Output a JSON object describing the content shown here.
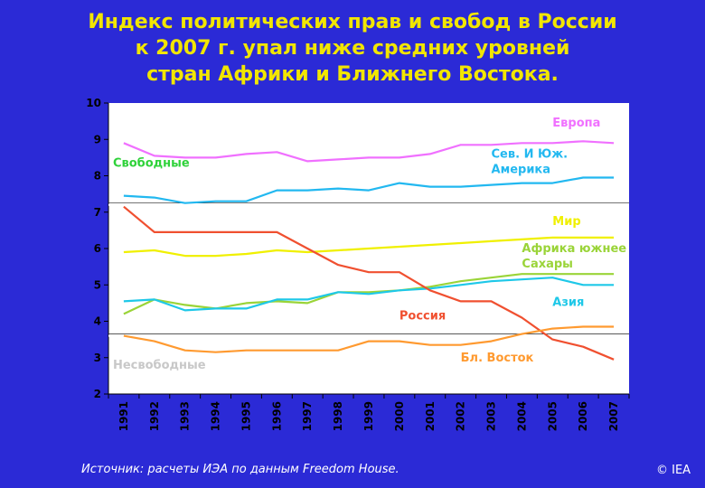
{
  "header": {
    "title_lines": [
      "Индекс политических прав и свобод в России",
      "к 2007 г. упал ниже средних уровней",
      "стран Африки и Ближнего Востока."
    ]
  },
  "footer": {
    "source": "Источник: расчеты ИЭА по данным Freedom House.",
    "copyright": "© IEA"
  },
  "chart_data": {
    "type": "line",
    "title": "",
    "xlabel": "",
    "ylabel": "",
    "ylim": [
      2,
      10
    ],
    "yticks": [
      2,
      3,
      4,
      5,
      6,
      7,
      8,
      9,
      10
    ],
    "x": [
      "1991",
      "1992",
      "1993",
      "1994",
      "1995",
      "1996",
      "1997",
      "1998",
      "1999",
      "2000",
      "2001",
      "2002",
      "2003",
      "2004",
      "2005",
      "2006",
      "2007"
    ],
    "grid": false,
    "background_color": "#ffffff",
    "reference_lines": [
      {
        "y": 7.2,
        "color": "#ffffff"
      },
      {
        "y": 3.6,
        "color": "#ffffff"
      }
    ],
    "zone_labels": [
      {
        "text": "Свободные",
        "color": "#2fd23a",
        "x": "1991",
        "y": 8.25
      },
      {
        "text": "Несвободные",
        "color": "#c8c8c8",
        "x": "1991",
        "y": 2.7
      }
    ],
    "series": [
      {
        "name": "Европа",
        "color": "#f070ff",
        "label_x": "2005",
        "label_y": 9.35,
        "values": [
          8.9,
          8.55,
          8.5,
          8.5,
          8.6,
          8.65,
          8.4,
          8.45,
          8.5,
          8.5,
          8.6,
          8.85,
          8.85,
          8.9,
          8.9,
          8.95,
          8.9
        ]
      },
      {
        "name": "Сев. И Юж. Америка",
        "label_lines": [
          "Сев. И Юж.",
          "Америка"
        ],
        "color": "#22b8f0",
        "label_x": "2003",
        "label_y": 8.5,
        "values": [
          7.45,
          7.4,
          7.25,
          7.3,
          7.3,
          7.6,
          7.6,
          7.65,
          7.6,
          7.8,
          7.7,
          7.7,
          7.75,
          7.8,
          7.8,
          7.95,
          7.95
        ]
      },
      {
        "name": "Мир",
        "color": "#f0f000",
        "label_x": "2005",
        "label_y": 6.65,
        "values": [
          5.9,
          5.95,
          5.8,
          5.8,
          5.85,
          5.95,
          5.9,
          5.95,
          6.0,
          6.05,
          6.1,
          6.15,
          6.2,
          6.25,
          6.3,
          6.3,
          6.3
        ]
      },
      {
        "name": "Африка южнее Сахары",
        "label_lines": [
          "Африка южнее",
          "Сахары"
        ],
        "color": "#9ad438",
        "label_x": "2004",
        "label_y": 5.9,
        "values": [
          4.2,
          4.6,
          4.45,
          4.35,
          4.5,
          4.55,
          4.5,
          4.8,
          4.8,
          4.85,
          4.95,
          5.1,
          5.2,
          5.3,
          5.3,
          5.3,
          5.3
        ]
      },
      {
        "name": "Азия",
        "color": "#1ec8e8",
        "label_x": "2005",
        "label_y": 4.42,
        "values": [
          4.55,
          4.6,
          4.3,
          4.35,
          4.35,
          4.6,
          4.6,
          4.8,
          4.75,
          4.85,
          4.9,
          5.0,
          5.1,
          5.15,
          5.2,
          5.0,
          5.0
        ]
      },
      {
        "name": "Россия",
        "color": "#f05030",
        "label_x": "2000",
        "label_y": 4.05,
        "values": [
          7.15,
          6.45,
          6.45,
          6.45,
          6.45,
          6.45,
          6.0,
          5.55,
          5.35,
          5.35,
          4.85,
          4.55,
          4.55,
          4.1,
          3.5,
          3.3,
          2.95
        ]
      },
      {
        "name": "Бл. Восток",
        "color": "#ff9a30",
        "label_x": "2002",
        "label_y": 2.9,
        "values": [
          3.6,
          3.45,
          3.2,
          3.15,
          3.2,
          3.2,
          3.2,
          3.2,
          3.45,
          3.45,
          3.35,
          3.35,
          3.45,
          3.65,
          3.8,
          3.85,
          3.85
        ]
      }
    ]
  }
}
